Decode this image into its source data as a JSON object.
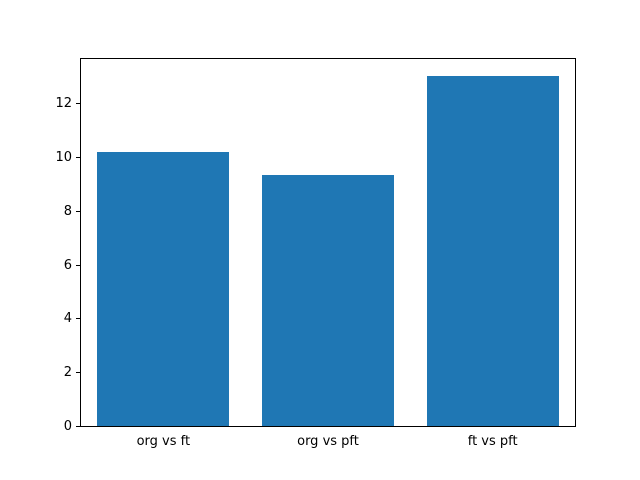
{
  "chart_data": {
    "type": "bar",
    "categories": [
      "org vs ft",
      "org vs pft",
      "ft vs pft"
    ],
    "values": [
      10.2,
      9.35,
      13.0
    ],
    "title": "",
    "xlabel": "",
    "ylabel": "",
    "ylim": [
      0,
      13.65
    ],
    "yticks": [
      0,
      2,
      4,
      6,
      8,
      10,
      12
    ],
    "bar_color": "#1f77b4",
    "bar_width_fraction": 0.8,
    "grid": false,
    "legend": false
  }
}
